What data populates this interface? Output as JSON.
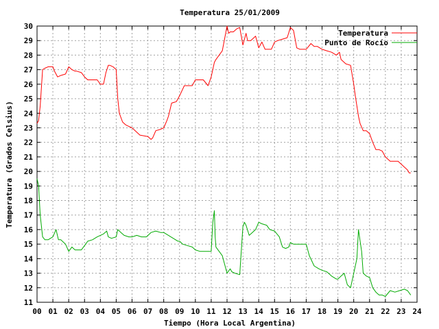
{
  "chart_data": {
    "type": "line",
    "title": "Temperatura 25/01/2009",
    "xlabel": "Tiempo (Hora Local Argentina)",
    "ylabel": "Temperatura (Grados Celsius)",
    "xlim": [
      0,
      24
    ],
    "ylim": [
      11,
      30
    ],
    "grid": true,
    "legend_position": "top-right",
    "x_ticks": [
      "00",
      "01",
      "02",
      "03",
      "04",
      "05",
      "06",
      "07",
      "08",
      "09",
      "10",
      "11",
      "12",
      "13",
      "14",
      "15",
      "16",
      "17",
      "18",
      "19",
      "20",
      "21",
      "22",
      "23",
      "24"
    ],
    "y_ticks": [
      "11",
      "12",
      "13",
      "14",
      "15",
      "16",
      "17",
      "18",
      "19",
      "20",
      "21",
      "22",
      "23",
      "24",
      "25",
      "26",
      "27",
      "28",
      "29",
      "30"
    ],
    "series": [
      {
        "name": "Temperatura",
        "color": "#ff0000",
        "x": [
          0.0,
          0.1,
          0.2,
          0.35,
          0.5,
          0.7,
          1.0,
          1.1,
          1.3,
          1.5,
          1.8,
          2.0,
          2.2,
          2.4,
          2.5,
          2.8,
          3.0,
          3.2,
          3.5,
          3.8,
          4.0,
          4.2,
          4.35,
          4.5,
          4.6,
          4.8,
          5.0,
          5.1,
          5.2,
          5.4,
          5.6,
          5.8,
          6.0,
          6.2,
          6.5,
          7.0,
          7.2,
          7.3,
          7.5,
          7.8,
          8.0,
          8.2,
          8.3,
          8.5,
          8.8,
          9.0,
          9.3,
          9.5,
          9.8,
          10.0,
          10.3,
          10.5,
          10.8,
          11.0,
          11.2,
          11.3,
          11.5,
          11.7,
          12.0,
          12.1,
          12.2,
          12.4,
          12.6,
          12.8,
          13.0,
          13.1,
          13.2,
          13.3,
          13.5,
          13.8,
          14.0,
          14.2,
          14.4,
          14.6,
          14.8,
          15.0,
          15.2,
          15.5,
          15.8,
          16.0,
          16.2,
          16.4,
          16.6,
          16.8,
          17.0,
          17.3,
          17.5,
          17.7,
          18.0,
          18.3,
          18.6,
          18.9,
          19.1,
          19.2,
          19.5,
          19.8,
          20.0,
          20.1,
          20.2,
          20.3,
          20.4,
          20.6,
          20.8,
          21.0,
          21.2,
          21.4,
          21.6,
          21.8,
          22.0,
          22.3,
          22.6,
          22.8,
          23.0,
          23.2,
          23.4,
          23.5,
          23.6
        ],
        "y": [
          23.3,
          23.5,
          24.5,
          27.0,
          27.1,
          27.2,
          27.2,
          26.9,
          26.5,
          26.6,
          26.7,
          27.2,
          27.0,
          26.9,
          26.9,
          26.8,
          26.5,
          26.3,
          26.3,
          26.3,
          26.0,
          26.0,
          26.8,
          27.3,
          27.3,
          27.2,
          27.0,
          25.0,
          24.0,
          23.4,
          23.2,
          23.1,
          23.0,
          22.8,
          22.5,
          22.4,
          22.2,
          22.3,
          22.8,
          22.9,
          23.0,
          23.5,
          23.8,
          24.7,
          24.8,
          25.2,
          25.9,
          25.9,
          25.9,
          26.3,
          26.3,
          26.3,
          25.9,
          26.5,
          27.5,
          27.7,
          28.0,
          28.3,
          30.0,
          29.5,
          29.6,
          29.6,
          29.8,
          29.9,
          28.7,
          29.1,
          29.5,
          29.0,
          29.0,
          29.3,
          28.5,
          28.9,
          28.4,
          28.4,
          28.4,
          28.9,
          29.0,
          29.1,
          29.2,
          29.9,
          29.7,
          28.5,
          28.4,
          28.4,
          28.4,
          28.8,
          28.6,
          28.6,
          28.4,
          28.3,
          28.2,
          28.0,
          28.2,
          27.7,
          27.4,
          27.3,
          26.0,
          25.2,
          24.5,
          23.8,
          23.3,
          22.8,
          22.8,
          22.6,
          22.0,
          21.5,
          21.5,
          21.4,
          21.0,
          20.7,
          20.7,
          20.7,
          20.5,
          20.3,
          20.1,
          19.9,
          19.9
        ]
      },
      {
        "name": "Punto de Rocío",
        "color": "#00aa00",
        "x": [
          0.0,
          0.1,
          0.2,
          0.35,
          0.5,
          0.7,
          1.0,
          1.2,
          1.35,
          1.5,
          1.8,
          2.0,
          2.2,
          2.4,
          2.6,
          2.8,
          3.0,
          3.2,
          3.5,
          3.8,
          4.0,
          4.2,
          4.4,
          4.5,
          4.7,
          5.0,
          5.1,
          5.3,
          5.5,
          5.8,
          6.0,
          6.3,
          6.6,
          6.9,
          7.2,
          7.5,
          7.8,
          8.0,
          8.3,
          8.6,
          8.9,
          9.0,
          9.2,
          9.5,
          9.8,
          10.0,
          10.3,
          10.6,
          10.8,
          11.0,
          11.1,
          11.2,
          11.25,
          11.3,
          11.5,
          11.7,
          12.0,
          12.2,
          12.3,
          12.5,
          12.8,
          13.0,
          13.1,
          13.2,
          13.4,
          13.6,
          13.8,
          14.0,
          14.2,
          14.5,
          14.7,
          15.0,
          15.3,
          15.5,
          15.7,
          15.9,
          16.0,
          16.2,
          16.5,
          16.8,
          17.0,
          17.2,
          17.5,
          17.8,
          18.0,
          18.3,
          18.6,
          18.9,
          19.0,
          19.2,
          19.4,
          19.6,
          19.8,
          20.0,
          20.2,
          20.3,
          20.5,
          20.6,
          20.8,
          21.0,
          21.2,
          21.4,
          21.6,
          21.8,
          22.0,
          22.3,
          22.6,
          22.9,
          23.2,
          23.4,
          23.6
        ],
        "y": [
          19.5,
          19.0,
          17.0,
          15.5,
          15.3,
          15.3,
          15.5,
          16.0,
          15.3,
          15.3,
          15.0,
          14.5,
          14.8,
          14.6,
          14.6,
          14.6,
          14.9,
          15.2,
          15.3,
          15.5,
          15.6,
          15.7,
          15.9,
          15.5,
          15.4,
          15.5,
          16.0,
          15.8,
          15.6,
          15.5,
          15.5,
          15.6,
          15.5,
          15.5,
          15.8,
          15.9,
          15.8,
          15.8,
          15.6,
          15.4,
          15.2,
          15.2,
          15.0,
          14.9,
          14.8,
          14.6,
          14.5,
          14.5,
          14.5,
          14.5,
          16.5,
          17.3,
          15.5,
          14.8,
          14.5,
          14.2,
          13.0,
          13.3,
          13.1,
          13.0,
          12.9,
          16.2,
          16.5,
          16.3,
          15.6,
          15.8,
          16.0,
          16.5,
          16.4,
          16.3,
          16.0,
          15.9,
          15.5,
          14.8,
          14.7,
          14.8,
          15.1,
          15.0,
          15.0,
          15.0,
          15.0,
          14.2,
          13.5,
          13.3,
          13.2,
          13.1,
          12.8,
          12.6,
          12.6,
          12.8,
          13.0,
          12.2,
          12.0,
          13.0,
          14.0,
          16.0,
          14.5,
          13.0,
          12.8,
          12.7,
          12.0,
          11.7,
          11.5,
          11.5,
          11.4,
          11.8,
          11.7,
          11.8,
          11.9,
          11.8,
          11.5
        ]
      }
    ]
  }
}
